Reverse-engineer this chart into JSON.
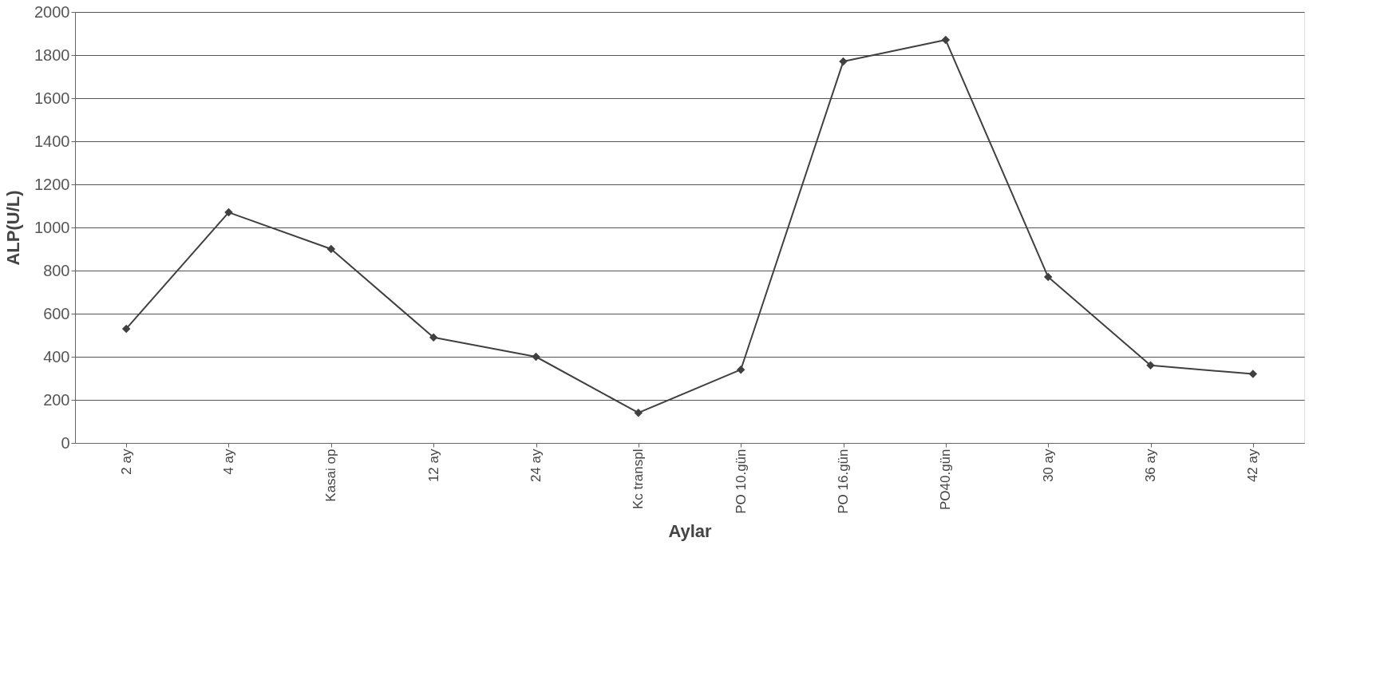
{
  "chart_data": {
    "type": "line",
    "xlabel": "Aylar",
    "ylabel": "ALP(U/L)",
    "categories": [
      "2 ay",
      "4 ay",
      "Kasai op",
      "12 ay",
      "24 ay",
      "Kc transpl",
      "PO 10.gün",
      "PO 16.gün",
      "PO40.gün",
      "30 ay",
      "36 ay",
      "42 ay"
    ],
    "series": [
      {
        "color": "#404040",
        "values": [
          530,
          1070,
          900,
          490,
          400,
          140,
          340,
          1770,
          1870,
          770,
          360,
          320
        ]
      }
    ],
    "ylim": [
      0,
      2000
    ],
    "yticks": [
      0,
      200,
      400,
      600,
      800,
      1000,
      1200,
      1400,
      1600,
      1800,
      2000
    ],
    "grid": "y",
    "marker": "diamond",
    "line_style": "solid"
  }
}
